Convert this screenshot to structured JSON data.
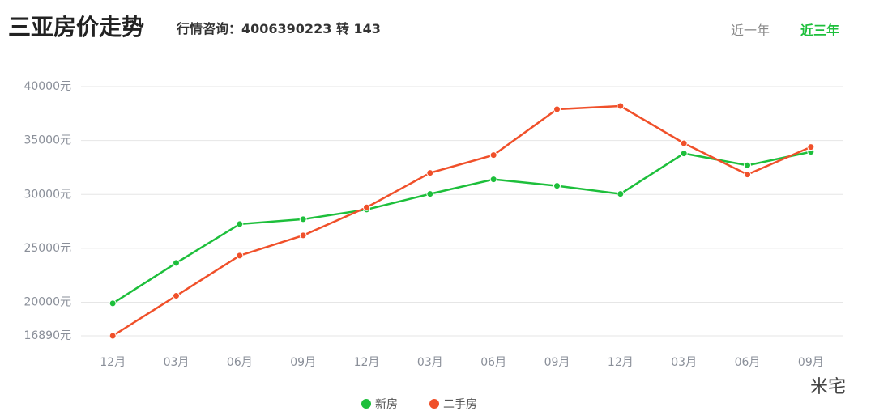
{
  "header": {
    "title": "三亚房价走势",
    "subtitle": "行情咨询：4006390223 转 143",
    "tabs": [
      "近一年",
      "近三年"
    ],
    "active_tab": 1
  },
  "watermark": "米宅",
  "chart_data": {
    "type": "line",
    "categories": [
      "12月",
      "03月",
      "06月",
      "09月",
      "12月",
      "03月",
      "06月",
      "09月",
      "12月",
      "03月",
      "06月",
      "09月"
    ],
    "series": [
      {
        "name": "新房",
        "color": "#1dbf3b",
        "values": [
          19900,
          23650,
          27250,
          27700,
          28600,
          30050,
          31400,
          30800,
          30050,
          33800,
          32700,
          33950
        ]
      },
      {
        "name": "二手房",
        "color": "#f0502a",
        "values": [
          16890,
          20600,
          24330,
          26200,
          28800,
          32000,
          33650,
          37900,
          38200,
          34750,
          31850,
          34400
        ]
      }
    ],
    "ylim": [
      16890,
      40000
    ],
    "yticks": [
      {
        "value": 16890,
        "label": "16890元"
      },
      {
        "value": 20000,
        "label": "20000元"
      },
      {
        "value": 25000,
        "label": "25000元"
      },
      {
        "value": 30000,
        "label": "30000元"
      },
      {
        "value": 35000,
        "label": "35000元"
      },
      {
        "value": 40000,
        "label": "40000元"
      }
    ],
    "grid": true,
    "legend": "bottom"
  }
}
